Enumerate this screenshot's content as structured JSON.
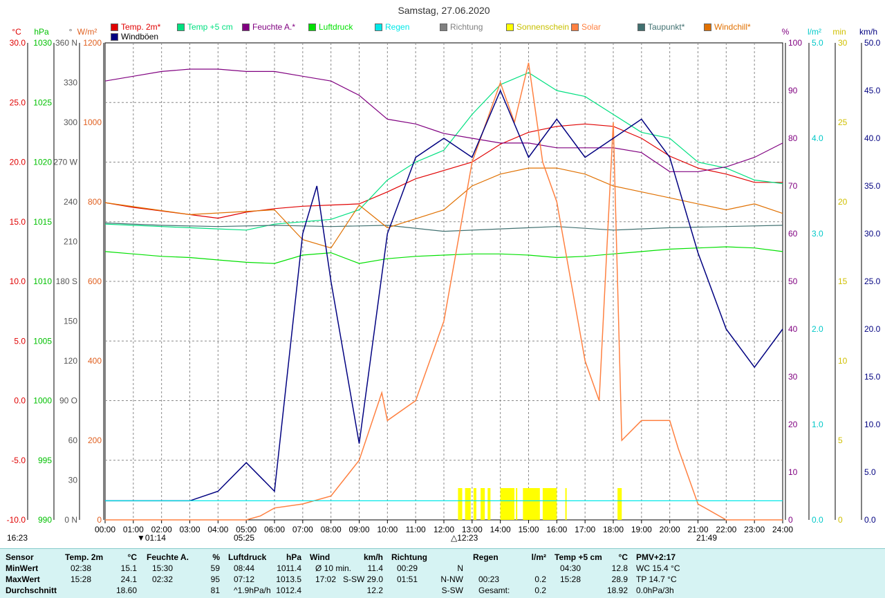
{
  "title": "Samstag, 27.06.2020",
  "legend": [
    {
      "label": "Temp. 2m*",
      "color": "#e00000"
    },
    {
      "label": "Temp +5 cm",
      "color": "#00e080"
    },
    {
      "label": "Feuchte A.*",
      "color": "#800080"
    },
    {
      "label": "Luftdruck",
      "color": "#00e000"
    },
    {
      "label": "Regen",
      "color": "#00e8e8"
    },
    {
      "label": "Richtung",
      "color": "#808080"
    },
    {
      "label": "Sonnenschein",
      "color": "#ffff00"
    },
    {
      "label": "Solar",
      "color": "#ff8040"
    },
    {
      "label": "Taupunkt*",
      "color": "#407070"
    },
    {
      "label": "Windchill*",
      "color": "#e07000"
    },
    {
      "label": "Windböen",
      "color": "#000080"
    }
  ],
  "axis_units": {
    "temp": "°C",
    "press": "hPa",
    "dir": "°",
    "solar": "W/m²",
    "hum": "%",
    "rain": "l/m²",
    "sun": "min",
    "wind": "km/h"
  },
  "axes": {
    "temp": [
      "30.0",
      "25.0",
      "20.0",
      "15.0",
      "10.0",
      "5.0",
      "0.0",
      "-5.0",
      "-10.0"
    ],
    "press": [
      "1030",
      "1025",
      "1020",
      "1015",
      "1010",
      "1005",
      "1000",
      "995",
      "990"
    ],
    "dir": [
      "360 N",
      "330",
      "300",
      "270 W",
      "240",
      "210",
      "180 S",
      "150",
      "120",
      "90 O",
      "60",
      "30",
      "0 N"
    ],
    "solar": [
      "1200",
      "1000",
      "800",
      "600",
      "400",
      "200",
      "0"
    ],
    "hum": [
      "100",
      "90",
      "80",
      "70",
      "60",
      "50",
      "40",
      "30",
      "20",
      "10",
      "0"
    ],
    "rain": [
      "5.0",
      "4.0",
      "3.0",
      "2.0",
      "1.0",
      "0.0"
    ],
    "sun": [
      "30",
      "25",
      "20",
      "15",
      "10",
      "5",
      "0"
    ],
    "wind": [
      "50.0",
      "45.0",
      "40.0",
      "35.0",
      "30.0",
      "25.0",
      "20.0",
      "15.0",
      "10.0",
      "5.0",
      "0.0"
    ],
    "time": [
      "00:00",
      "01:00",
      "02:00",
      "03:00",
      "04:00",
      "05:00",
      "06:00",
      "07:00",
      "08:00",
      "09:00",
      "10:00",
      "11:00",
      "12:00",
      "13:00",
      "14:00",
      "15:00",
      "16:00",
      "17:00",
      "18:00",
      "19:00",
      "20:00",
      "21:00",
      "22:00",
      "23:00",
      "24:00"
    ]
  },
  "events": {
    "sunset_prev": "16:23",
    "moonset": "01:14",
    "sunrise": "05:25",
    "noon": "12:23",
    "sunset": "21:49"
  },
  "chart_data": {
    "type": "line",
    "title": "Samstag, 27.06.2020",
    "x_unit": "hour of day",
    "xlim": [
      0,
      24
    ],
    "series": [
      {
        "name": "Temp. 2m*",
        "unit": "°C",
        "points": [
          [
            0,
            16.6
          ],
          [
            1,
            16.2
          ],
          [
            2,
            15.9
          ],
          [
            3,
            15.6
          ],
          [
            4,
            15.3
          ],
          [
            5,
            15.8
          ],
          [
            6,
            16.1
          ],
          [
            7,
            16.3
          ],
          [
            8,
            16.4
          ],
          [
            9,
            16.5
          ],
          [
            10,
            17.5
          ],
          [
            11,
            18.6
          ],
          [
            12,
            19.3
          ],
          [
            13,
            20.0
          ],
          [
            14,
            21.5
          ],
          [
            15,
            22.5
          ],
          [
            16,
            23.0
          ],
          [
            17,
            23.2
          ],
          [
            18,
            23.0
          ],
          [
            19,
            22.0
          ],
          [
            20,
            20.5
          ],
          [
            21,
            19.5
          ],
          [
            22,
            19.0
          ],
          [
            23,
            18.3
          ],
          [
            24,
            18.3
          ]
        ]
      },
      {
        "name": "Temp +5 cm",
        "unit": "°C",
        "points": [
          [
            0,
            14.8
          ],
          [
            1,
            14.7
          ],
          [
            2,
            14.6
          ],
          [
            3,
            14.5
          ],
          [
            4,
            14.4
          ],
          [
            5,
            14.3
          ],
          [
            6,
            14.8
          ],
          [
            7,
            15.0
          ],
          [
            8,
            15.2
          ],
          [
            9,
            16.0
          ],
          [
            10,
            18.5
          ],
          [
            11,
            20.0
          ],
          [
            12,
            21.0
          ],
          [
            13,
            24.0
          ],
          [
            14,
            26.5
          ],
          [
            15,
            27.5
          ],
          [
            16,
            26.0
          ],
          [
            17,
            25.5
          ],
          [
            18,
            24.0
          ],
          [
            19,
            22.5
          ],
          [
            20,
            22.0
          ],
          [
            21,
            20.0
          ],
          [
            22,
            19.5
          ],
          [
            23,
            18.5
          ],
          [
            24,
            18.2
          ]
        ]
      },
      {
        "name": "Feuchte A.*",
        "unit": "%",
        "points": [
          [
            0,
            92
          ],
          [
            1,
            93
          ],
          [
            2,
            94
          ],
          [
            3,
            94.5
          ],
          [
            4,
            94.5
          ],
          [
            5,
            94
          ],
          [
            6,
            94
          ],
          [
            7,
            93
          ],
          [
            8,
            92
          ],
          [
            9,
            89
          ],
          [
            10,
            84
          ],
          [
            11,
            83
          ],
          [
            12,
            81
          ],
          [
            13,
            80
          ],
          [
            14,
            79
          ],
          [
            15,
            79
          ],
          [
            16,
            78
          ],
          [
            17,
            78
          ],
          [
            18,
            78
          ],
          [
            19,
            77
          ],
          [
            20,
            73
          ],
          [
            21,
            73
          ],
          [
            22,
            74
          ],
          [
            23,
            76
          ],
          [
            24,
            79
          ]
        ]
      },
      {
        "name": "Luftdruck",
        "unit": "hPa",
        "points": [
          [
            0,
            1012.5
          ],
          [
            1,
            1012.3
          ],
          [
            2,
            1012.1
          ],
          [
            3,
            1012.0
          ],
          [
            4,
            1011.8
          ],
          [
            5,
            1011.6
          ],
          [
            6,
            1011.5
          ],
          [
            7,
            1012.2
          ],
          [
            8,
            1012.4
          ],
          [
            9,
            1011.5
          ],
          [
            10,
            1011.9
          ],
          [
            11,
            1012.1
          ],
          [
            12,
            1012.2
          ],
          [
            13,
            1012.3
          ],
          [
            14,
            1012.3
          ],
          [
            15,
            1012.2
          ],
          [
            16,
            1012.0
          ],
          [
            17,
            1012.1
          ],
          [
            18,
            1012.3
          ],
          [
            19,
            1012.5
          ],
          [
            20,
            1012.7
          ],
          [
            21,
            1012.8
          ],
          [
            22,
            1012.9
          ],
          [
            23,
            1012.8
          ],
          [
            24,
            1012.5
          ]
        ]
      },
      {
        "name": "Taupunkt*",
        "unit": "°C",
        "points": [
          [
            0,
            14.9
          ],
          [
            2,
            14.7
          ],
          [
            4,
            14.6
          ],
          [
            6,
            14.7
          ],
          [
            8,
            14.6
          ],
          [
            10,
            14.7
          ],
          [
            12,
            14.2
          ],
          [
            14,
            14.4
          ],
          [
            16,
            14.6
          ],
          [
            18,
            14.3
          ],
          [
            20,
            14.5
          ],
          [
            22,
            14.6
          ],
          [
            24,
            14.7
          ]
        ]
      },
      {
        "name": "Windchill*",
        "unit": "°C",
        "points": [
          [
            0,
            16.6
          ],
          [
            3,
            15.6
          ],
          [
            6,
            16.0
          ],
          [
            7,
            13.5
          ],
          [
            8,
            12.8
          ],
          [
            9,
            16.4
          ],
          [
            10,
            14.5
          ],
          [
            12,
            16.0
          ],
          [
            13,
            18.0
          ],
          [
            14,
            19.0
          ],
          [
            15,
            19.5
          ],
          [
            16,
            19.5
          ],
          [
            17,
            19.0
          ],
          [
            18,
            18.0
          ],
          [
            19,
            17.5
          ],
          [
            20,
            17.0
          ],
          [
            21,
            16.5
          ],
          [
            22,
            16.0
          ],
          [
            23,
            16.5
          ],
          [
            24,
            15.7
          ]
        ]
      },
      {
        "name": "Solar",
        "unit": "W/m²",
        "points": [
          [
            0,
            0
          ],
          [
            5,
            0
          ],
          [
            5.5,
            10
          ],
          [
            6,
            30
          ],
          [
            7,
            40
          ],
          [
            8,
            60
          ],
          [
            9,
            150
          ],
          [
            9.8,
            320
          ],
          [
            10,
            250
          ],
          [
            11,
            300
          ],
          [
            12,
            500
          ],
          [
            12.5,
            700
          ],
          [
            13,
            900
          ],
          [
            13.5,
            1000
          ],
          [
            14,
            1100
          ],
          [
            14.5,
            1000
          ],
          [
            15,
            1150
          ],
          [
            15.5,
            900
          ],
          [
            16,
            800
          ],
          [
            17,
            400
          ],
          [
            17.5,
            300
          ],
          [
            18,
            1000
          ],
          [
            18.3,
            200
          ],
          [
            19,
            250
          ],
          [
            20,
            250
          ],
          [
            20.3,
            180
          ],
          [
            21,
            40
          ],
          [
            22,
            0
          ],
          [
            24,
            0
          ]
        ]
      },
      {
        "name": "Windböen",
        "unit": "km/h",
        "points": [
          [
            0,
            2
          ],
          [
            1,
            2
          ],
          [
            2,
            2
          ],
          [
            3,
            2
          ],
          [
            4,
            3
          ],
          [
            5,
            6
          ],
          [
            6,
            3
          ],
          [
            7,
            30
          ],
          [
            7.5,
            35
          ],
          [
            8,
            25
          ],
          [
            9,
            8
          ],
          [
            10,
            30
          ],
          [
            11,
            38
          ],
          [
            12,
            40
          ],
          [
            13,
            38
          ],
          [
            14,
            45
          ],
          [
            15,
            38
          ],
          [
            16,
            42
          ],
          [
            17,
            38
          ],
          [
            18,
            40
          ],
          [
            19,
            42
          ],
          [
            20,
            38
          ],
          [
            21,
            28
          ],
          [
            22,
            20
          ],
          [
            23,
            16
          ],
          [
            24,
            20
          ]
        ]
      },
      {
        "name": "Regen",
        "unit": "l/m²",
        "points": [
          [
            0,
            0.2
          ],
          [
            24,
            0.2
          ]
        ]
      }
    ],
    "sunshine_blocks": [
      [
        12.5,
        12.65
      ],
      [
        12.75,
        12.95
      ],
      [
        13.05,
        13.15
      ],
      [
        13.3,
        13.45
      ],
      [
        13.55,
        13.65
      ],
      [
        14.0,
        14.5
      ],
      [
        14.55,
        14.6
      ],
      [
        14.8,
        15.4
      ],
      [
        15.5,
        16.0
      ],
      [
        16.3,
        16.35
      ],
      [
        18.15,
        18.3
      ]
    ],
    "ylim": {
      "temp": [
        -10,
        30
      ],
      "press": [
        990,
        1030
      ],
      "dir": [
        0,
        360
      ],
      "solar": [
        0,
        1200
      ],
      "hum": [
        0,
        100
      ],
      "rain": [
        0,
        5
      ],
      "sun": [
        0,
        30
      ],
      "wind": [
        0,
        50
      ]
    }
  },
  "stats": {
    "sensor": {
      "h": "Sensor",
      "rows": [
        "MinWert",
        "MaxWert",
        "Durchschnitt"
      ]
    },
    "temp2m": {
      "h": "Temp. 2m",
      "u": "°C",
      "rows": [
        [
          "02:38",
          "15.1"
        ],
        [
          "15:28",
          "24.1"
        ],
        [
          "",
          "18.60"
        ]
      ]
    },
    "feuchte": {
      "h": "Feuchte A.",
      "u": "%",
      "rows": [
        [
          "15:30",
          "59"
        ],
        [
          "02:32",
          "95"
        ],
        [
          "",
          "81"
        ]
      ]
    },
    "luftdruck": {
      "h": "Luftdruck",
      "u": "hPa",
      "rows": [
        [
          "08:44",
          "1011.4"
        ],
        [
          "07:12",
          "1013.5"
        ],
        [
          "^1.9hPa/h",
          "1012.4"
        ]
      ]
    },
    "wind": {
      "h": "Wind",
      "u": "km/h",
      "rows": [
        [
          "Ø 10 min.",
          "11.4"
        ],
        [
          "17:02",
          "S-SW 29.0"
        ],
        [
          "",
          "12.2"
        ]
      ]
    },
    "richtung": {
      "h": "Richtung",
      "rows": [
        [
          "00:29",
          "N"
        ],
        [
          "01:51",
          "N-NW"
        ],
        [
          "",
          "S-SW"
        ]
      ]
    },
    "regen": {
      "h": "Regen",
      "u": "l/m²",
      "rows": [
        [
          "",
          ""
        ],
        [
          "00:23",
          "0.2"
        ],
        [
          "Gesamt:",
          "0.2"
        ]
      ]
    },
    "temp5": {
      "h": "Temp +5 cm",
      "u": "°C",
      "rows": [
        [
          "04:30",
          "12.8"
        ],
        [
          "15:28",
          "28.9"
        ],
        [
          "",
          "18.92"
        ]
      ]
    },
    "pmv": {
      "h": "PMV+2:17",
      "rows": [
        "WC 15.4 °C",
        "TP 14.7 °C",
        "0.0hPa/3h"
      ]
    }
  }
}
